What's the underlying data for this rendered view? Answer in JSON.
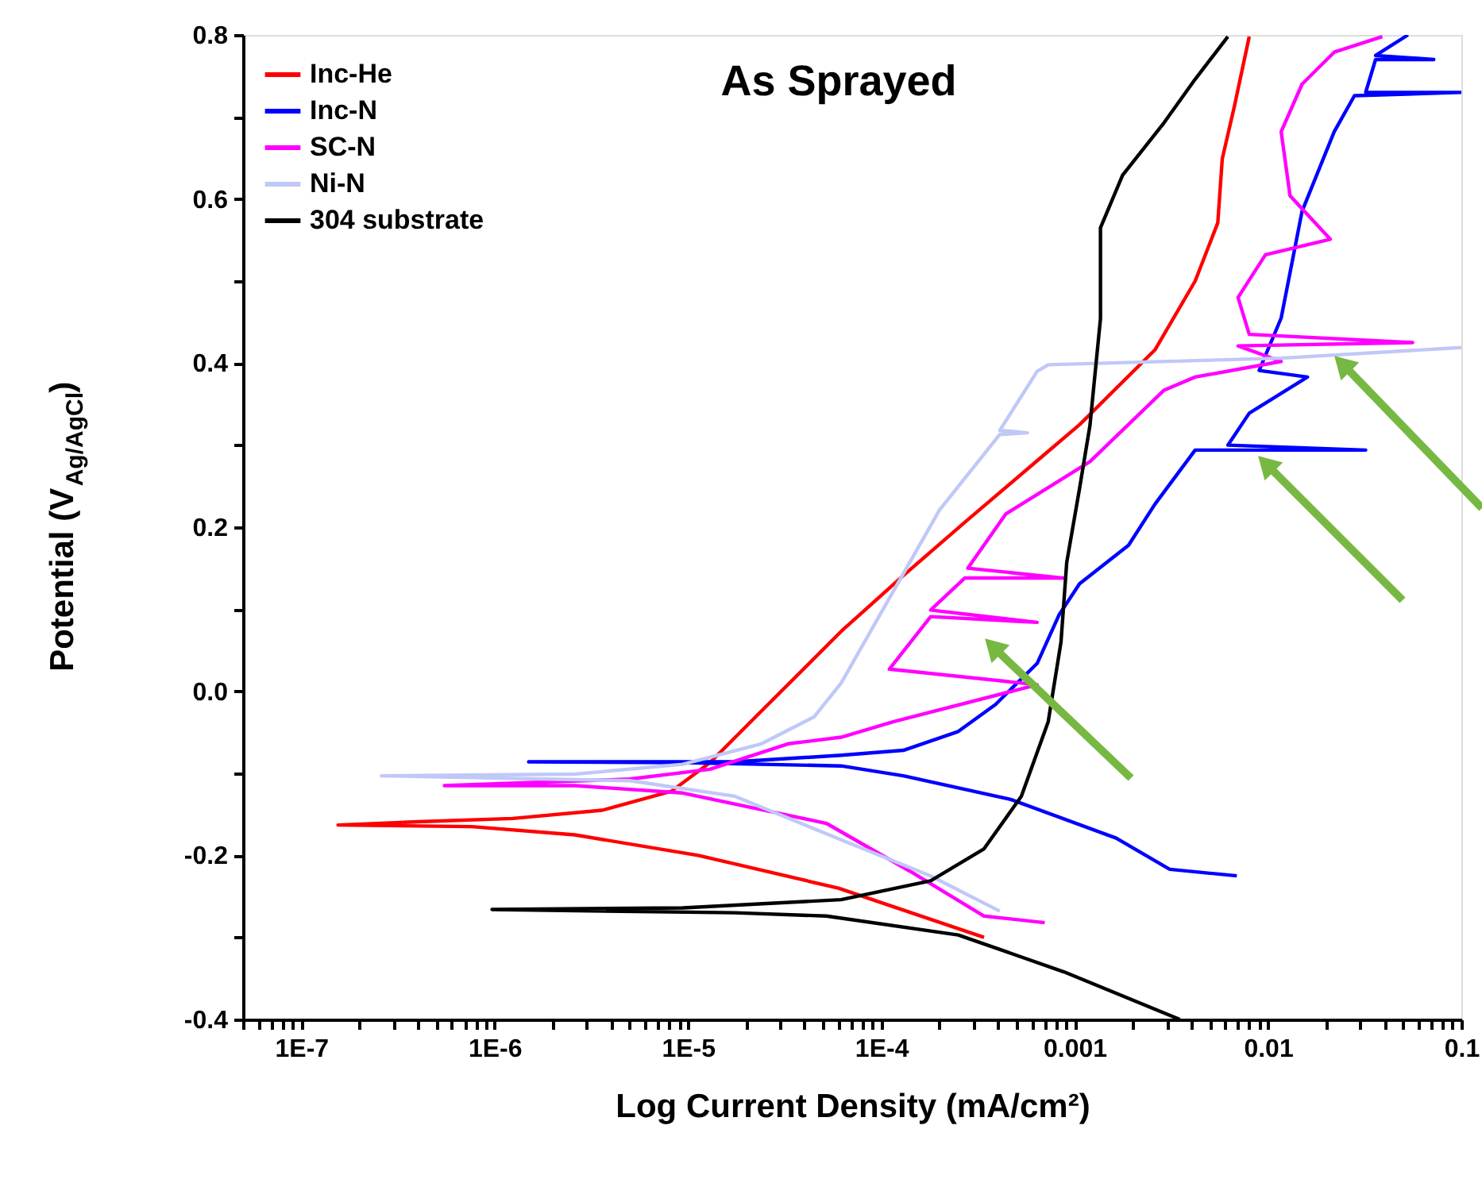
{
  "chart_data": {
    "type": "line",
    "title": "As Sprayed",
    "xlabel": "Log Current Density (mA/cm²)",
    "ylabel": "Potential (V$_{Ag/AgCl}$)",
    "log": "x",
    "xlim": [
      5e-08,
      0.1
    ],
    "ylim": [
      -0.4,
      0.8
    ],
    "xticks": [
      {
        "value": 5e-08,
        "label": null
      },
      {
        "value": 6e-08,
        "label": null
      },
      {
        "value": 7e-08,
        "label": null
      },
      {
        "value": 8e-08,
        "label": null
      },
      {
        "value": 9e-08,
        "label": null
      },
      {
        "value": 1e-07,
        "label": "1E-7"
      },
      {
        "value": 2e-07,
        "label": null
      },
      {
        "value": 3e-07,
        "label": null
      },
      {
        "value": 4e-07,
        "label": null
      },
      {
        "value": 5e-07,
        "label": null
      },
      {
        "value": 6e-07,
        "label": null
      },
      {
        "value": 7e-07,
        "label": null
      },
      {
        "value": 8e-07,
        "label": null
      },
      {
        "value": 9e-07,
        "label": null
      },
      {
        "value": 1e-06,
        "label": "1E-6"
      },
      {
        "value": 2e-06,
        "label": null
      },
      {
        "value": 3e-06,
        "label": null
      },
      {
        "value": 4e-06,
        "label": null
      },
      {
        "value": 5e-06,
        "label": null
      },
      {
        "value": 6e-06,
        "label": null
      },
      {
        "value": 7e-06,
        "label": null
      },
      {
        "value": 8e-06,
        "label": null
      },
      {
        "value": 9e-06,
        "label": null
      },
      {
        "value": 1e-05,
        "label": "1E-5"
      },
      {
        "value": 2e-05,
        "label": null
      },
      {
        "value": 3e-05,
        "label": null
      },
      {
        "value": 4e-05,
        "label": null
      },
      {
        "value": 5e-05,
        "label": null
      },
      {
        "value": 6e-05,
        "label": null
      },
      {
        "value": 7e-05,
        "label": null
      },
      {
        "value": 8e-05,
        "label": null
      },
      {
        "value": 9e-05,
        "label": null
      },
      {
        "value": 0.0001,
        "label": "1E-4"
      },
      {
        "value": 0.0002,
        "label": null
      },
      {
        "value": 0.0003,
        "label": null
      },
      {
        "value": 0.0004,
        "label": null
      },
      {
        "value": 0.0005,
        "label": null
      },
      {
        "value": 0.0006,
        "label": null
      },
      {
        "value": 0.0007,
        "label": null
      },
      {
        "value": 0.0008,
        "label": null
      },
      {
        "value": 0.0009,
        "label": null
      },
      0.001,
      {
        "value": 0.002,
        "label": null
      },
      {
        "value": 0.003,
        "label": null
      },
      {
        "value": 0.004,
        "label": null
      },
      {
        "value": 0.005,
        "label": null
      },
      {
        "value": 0.006,
        "label": null
      },
      {
        "value": 0.007,
        "label": null
      },
      {
        "value": 0.008,
        "label": null
      },
      {
        "value": 0.009,
        "label": null
      },
      0.01,
      {
        "value": 0.02,
        "label": null
      },
      {
        "value": 0.03,
        "label": null
      },
      {
        "value": 0.04,
        "label": null
      },
      {
        "value": 0.05,
        "label": null
      },
      {
        "value": 0.06,
        "label": null
      },
      {
        "value": 0.07,
        "label": null
      },
      {
        "value": 0.08,
        "label": null
      },
      {
        "value": 0.09,
        "label": null
      },
      0.1
    ],
    "yticks": [
      {
        "value": -0.4,
        "label": "-0.4"
      },
      {
        "value": -0.3,
        "label": null
      },
      {
        "value": -0.2,
        "label": "-0.2"
      },
      {
        "value": -0.1,
        "label": null
      },
      {
        "value": 0,
        "label": "0.0"
      },
      {
        "value": 0.1,
        "label": null
      },
      {
        "value": 0.2,
        "label": "0.2"
      },
      {
        "value": 0.3,
        "label": null
      },
      {
        "value": 0.4,
        "label": "0.4"
      },
      {
        "value": 0.5,
        "label": null
      },
      {
        "value": 0.6,
        "label": "0.6"
      },
      {
        "value": 0.7,
        "label": null
      },
      {
        "value": 0.8,
        "label": "0.8"
      }
    ],
    "grid": false,
    "legend": "top left",
    "marker": "none",
    "line_style": "solid",
    "series": [
      {
        "name": "Inc-He",
        "color": "#ff0000",
        "x": [
          0.00034,
          6e-05,
          1.13e-05,
          2.6e-06,
          7.6e-07,
          1.55e-07,
          4e-07,
          1.24e-06,
          3.6e-06,
          8.2e-06,
          1.3e-05,
          2.4e-05,
          6.2e-05,
          0.00013,
          0.00028,
          0.00064,
          0.00106,
          0.0026,
          0.0042,
          0.0055,
          0.0058,
          0.0067,
          0.008
        ],
        "values": [
          -0.3,
          -0.24,
          -0.2,
          -0.175,
          -0.165,
          -0.163,
          -0.159,
          -0.155,
          -0.145,
          -0.122,
          -0.087,
          -0.024,
          0.073,
          0.141,
          0.209,
          0.281,
          0.325,
          0.416,
          0.5,
          0.571,
          0.649,
          0.713,
          0.798
        ]
      },
      {
        "name": "Inc-N",
        "color": "#0000ff",
        "x": [
          0.0069,
          0.0031,
          0.00164,
          0.00047,
          0.00013,
          6.2e-05,
          9.4e-06,
          1.5e-06,
          1.75e-05,
          6.2e-05,
          0.00013,
          0.00025,
          0.00039,
          0.00064,
          0.00083,
          0.00106,
          0.0019,
          0.0026,
          0.0042,
          0.032,
          0.0062,
          0.008,
          0.016,
          0.009,
          0.0117,
          0.015,
          0.022,
          0.028,
          0.1,
          0.032,
          0.036,
          0.072,
          0.036,
          0.053
        ],
        "values": [
          -0.225,
          -0.217,
          -0.179,
          -0.132,
          -0.103,
          -0.091,
          -0.087,
          -0.086,
          -0.086,
          -0.078,
          -0.072,
          -0.049,
          -0.016,
          0.034,
          0.093,
          0.131,
          0.178,
          0.228,
          0.294,
          0.294,
          0.3,
          0.339,
          0.383,
          0.391,
          0.455,
          0.585,
          0.682,
          0.726,
          0.73,
          0.73,
          0.77,
          0.77,
          0.775,
          0.8
        ]
      },
      {
        "name": "SC-N",
        "color": "#ff00ff",
        "x": [
          0.0007,
          0.00034,
          0.00014,
          5.2e-05,
          9.4e-06,
          2.6e-06,
          5.5e-07,
          5e-06,
          1.3e-05,
          3.3e-05,
          6.2e-05,
          0.000116,
          0.00064,
          0.00011,
          0.00018,
          0.00064,
          0.00018,
          0.00027,
          0.00088,
          0.00028,
          0.00044,
          0.0012,
          0.0029,
          0.0042,
          0.0117,
          0.007,
          0.056,
          0.008,
          0.007,
          0.0097,
          0.021,
          0.013,
          0.0117,
          0.015,
          0.022,
          0.039
        ],
        "values": [
          -0.282,
          -0.274,
          -0.219,
          -0.161,
          -0.124,
          -0.115,
          -0.115,
          -0.107,
          -0.095,
          -0.064,
          -0.056,
          -0.037,
          0.008,
          0.027,
          0.091,
          0.084,
          0.099,
          0.138,
          0.138,
          0.15,
          0.216,
          0.28,
          0.367,
          0.383,
          0.402,
          0.421,
          0.425,
          0.435,
          0.48,
          0.532,
          0.551,
          0.604,
          0.682,
          0.74,
          0.779,
          0.798
        ]
      },
      {
        "name": "Ni-N",
        "color": "#c0c8f8",
        "x": [
          0.00041,
          0.00018,
          6.2e-05,
          1.75e-05,
          5e-06,
          2.6e-07,
          2.6e-06,
          9.4e-06,
          2.4e-05,
          4.5e-05,
          6.2e-05,
          0.0002,
          0.00041,
          0.00057,
          0.00041,
          0.00064,
          0.00073,
          0.0117,
          0.1
        ],
        "values": [
          -0.268,
          -0.225,
          -0.181,
          -0.128,
          -0.109,
          -0.103,
          -0.101,
          -0.089,
          -0.064,
          -0.031,
          0.01,
          0.221,
          0.313,
          0.315,
          0.318,
          0.39,
          0.398,
          0.406,
          0.419
        ]
      },
      {
        "name": "304 substrate",
        "color": "#000000",
        "x": [
          0.0035,
          0.00088,
          0.00025,
          5.2e-05,
          1.75e-05,
          9.7e-07,
          9.4e-06,
          6.2e-05,
          0.00018,
          0.00034,
          0.00053,
          0.00073,
          0.00085,
          0.00091,
          0.00106,
          0.0012,
          0.00136,
          0.00136,
          0.00177,
          0.0029,
          0.0042,
          0.0062
        ],
        "values": [
          -0.4,
          -0.342,
          -0.297,
          -0.274,
          -0.27,
          -0.266,
          -0.264,
          -0.254,
          -0.231,
          -0.192,
          -0.128,
          -0.037,
          0.06,
          0.157,
          0.247,
          0.324,
          0.454,
          0.565,
          0.629,
          0.693,
          0.746,
          0.798
        ]
      }
    ]
  }
}
